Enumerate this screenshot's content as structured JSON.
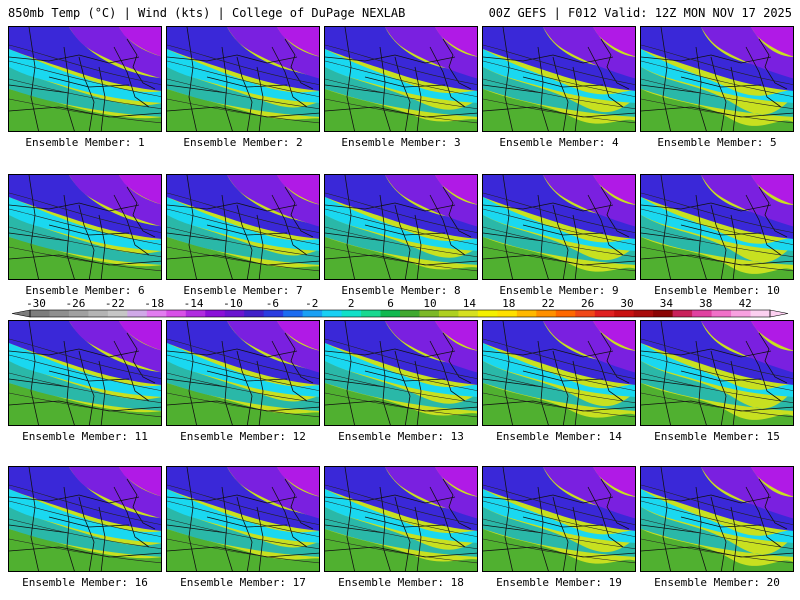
{
  "header": {
    "left": "850mb Temp (°C) | Wind (kts) | College of DuPage NEXLAB",
    "right": "00Z GEFS | F012 Valid: 12Z MON NOV 17 2025"
  },
  "member_label_prefix": "Ensemble Member: ",
  "members": [
    1,
    2,
    3,
    4,
    5,
    6,
    7,
    8,
    9,
    10,
    11,
    12,
    13,
    14,
    15,
    16,
    17,
    18,
    19,
    20
  ],
  "colorbar": {
    "ticks": [
      "-30",
      "-26",
      "-22",
      "-18",
      "-14",
      "-10",
      "-6",
      "-2",
      "2",
      "6",
      "10",
      "14",
      "18",
      "22",
      "26",
      "30",
      "34",
      "38",
      "42"
    ],
    "colors": [
      "#7d7d7d",
      "#8f8f8f",
      "#a0a0a0",
      "#b4b4b4",
      "#c6c6c6",
      "#d0a8e8",
      "#e27cf0",
      "#d850e8",
      "#b02ce0",
      "#8a10d8",
      "#6a14d0",
      "#4020c8",
      "#2a3ce0",
      "#1c6cf0",
      "#1aa0f4",
      "#18d0f4",
      "#10e0c8",
      "#18d890",
      "#10b850",
      "#40a830",
      "#7cb828",
      "#aed020",
      "#d6e020",
      "#f4f000",
      "#ffe000",
      "#ffb800",
      "#ff9000",
      "#ff6800",
      "#f04818",
      "#e02020",
      "#c81010",
      "#a80c0c",
      "#8a0606",
      "#c8205a",
      "#e040a0",
      "#f070c8",
      "#f8a0e0",
      "#fcd0f0"
    ]
  },
  "palette": {
    "magenta": "#b01ae6",
    "violet": "#7a20e0",
    "blue": "#3a28d8",
    "cyan": "#1ad8f0",
    "teal": "#2ab8a8",
    "green": "#50b030",
    "yellowgreen": "#c8e020"
  }
}
